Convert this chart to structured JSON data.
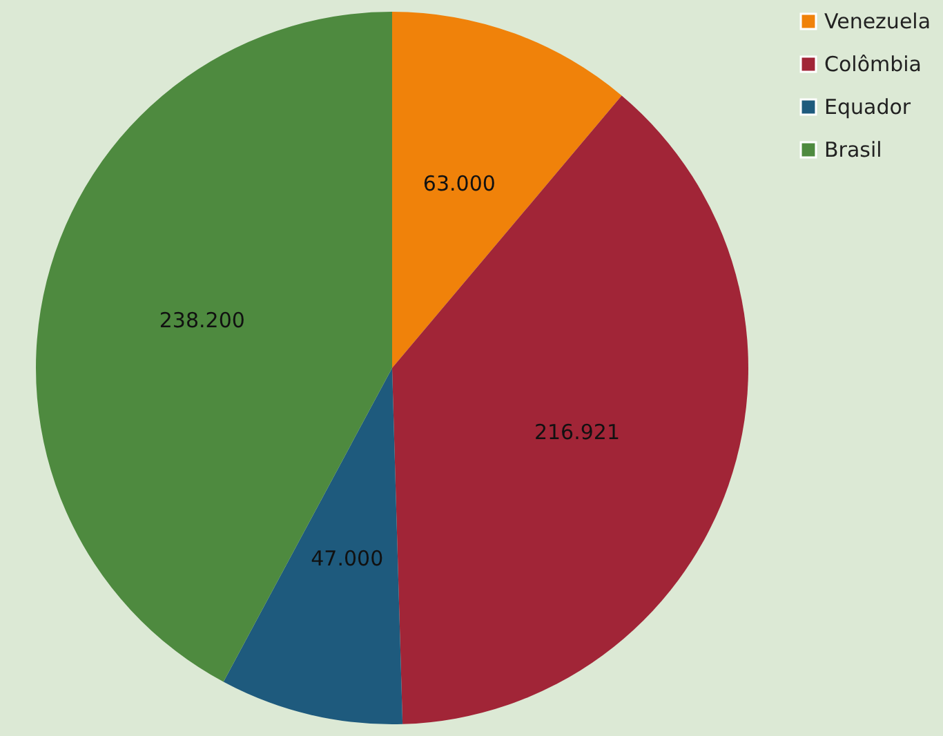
{
  "chart_data": {
    "type": "pie",
    "categories": [
      "Venezuela",
      "Colômbia",
      "Equador",
      "Brasil"
    ],
    "values": [
      63000,
      216921,
      47000,
      238200
    ],
    "value_labels": [
      "63.000",
      "216.921",
      "47.000",
      "238.200"
    ],
    "colors": [
      "#f0820a",
      "#a12537",
      "#1e5a7d",
      "#4e8a3f"
    ],
    "legend": "right"
  }
}
